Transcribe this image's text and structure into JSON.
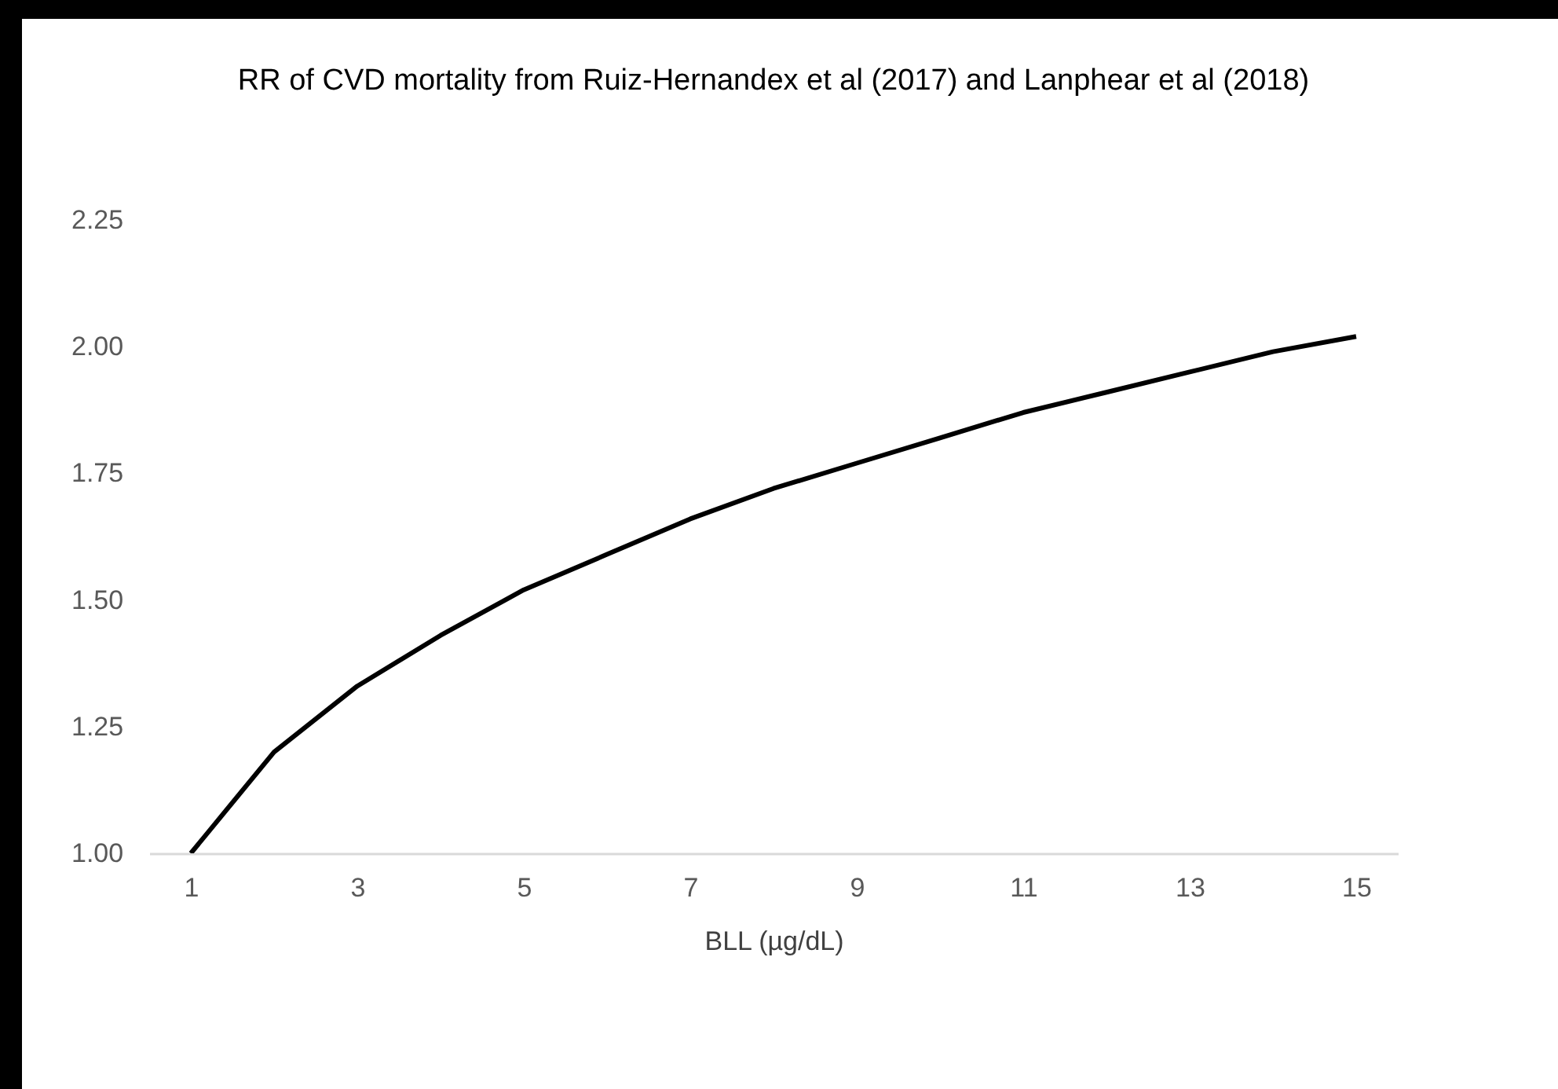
{
  "chart_data": {
    "type": "line",
    "title": "RR of CVD mortality from Ruiz-Hernandex et al (2017) and Lanphear et al (2018)",
    "xlabel": "BLL (µg/dL)",
    "x": [
      1,
      2,
      3,
      4,
      5,
      6,
      7,
      8,
      9,
      10,
      11,
      12,
      13,
      14,
      15
    ],
    "series": [
      {
        "color": "#000000",
        "values": [
          1.0,
          1.2,
          1.33,
          1.43,
          1.52,
          1.59,
          1.66,
          1.72,
          1.77,
          1.82,
          1.87,
          1.91,
          1.95,
          1.99,
          2.02
        ]
      }
    ],
    "xlim": [
      0.5,
      15.5
    ],
    "xticks": [
      1,
      3,
      5,
      7,
      9,
      11,
      13,
      15
    ],
    "ylim": [
      1,
      2.25
    ],
    "yticks": [
      {
        "value": 1,
        "label": "1.00"
      },
      {
        "value": 1.25,
        "label": "1.25"
      },
      {
        "value": 1.5,
        "label": "1.50"
      },
      {
        "value": 1.75,
        "label": "1.75"
      },
      {
        "value": 2,
        "label": "2.00"
      },
      {
        "value": 2.25,
        "label": "2.25"
      }
    ],
    "marker": "none",
    "line_style": "solid"
  }
}
